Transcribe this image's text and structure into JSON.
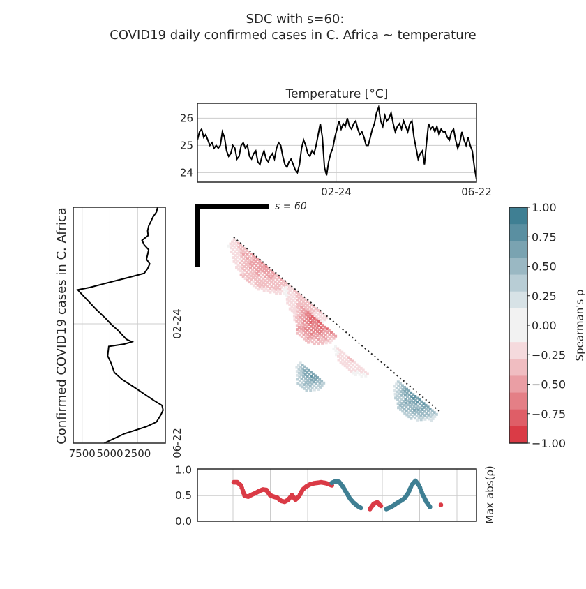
{
  "title": {
    "line1": "SDC with s=60:",
    "line2": "COVID19 daily confirmed cases in C. Africa ~ temperature"
  },
  "colors": {
    "positive": "#3f7f93",
    "negative": "#da3b46",
    "series_line": "#000000",
    "grid": "#cccccc"
  },
  "chart_data": [
    {
      "type": "line",
      "id": "temperature",
      "title": "Temperature [°C]",
      "yticks": [
        24,
        25,
        26
      ],
      "ylim": [
        23.65,
        26.55
      ],
      "xtick_labels": [
        "02-24",
        "06-22"
      ],
      "grid": true,
      "y": [
        25.2,
        25.5,
        25.6,
        25.3,
        25.4,
        25.2,
        25.0,
        25.1,
        24.9,
        25.0,
        24.9,
        25.0,
        25.5,
        25.3,
        24.8,
        24.6,
        24.7,
        25.0,
        24.9,
        24.5,
        24.6,
        25.0,
        25.1,
        24.9,
        25.0,
        24.6,
        24.5,
        24.7,
        24.8,
        24.4,
        24.3,
        24.6,
        24.8,
        24.5,
        24.4,
        24.6,
        24.7,
        24.5,
        24.9,
        25.1,
        25.0,
        24.6,
        24.3,
        24.2,
        24.4,
        24.5,
        24.3,
        24.1,
        24.0,
        24.3,
        24.9,
        25.2,
        25.0,
        24.7,
        24.6,
        24.8,
        24.7,
        25.0,
        25.4,
        25.8,
        25.3,
        24.2,
        23.9,
        24.4,
        24.7,
        24.9,
        25.3,
        25.6,
        25.9,
        25.6,
        25.8,
        25.7,
        26.0,
        25.7,
        25.6,
        25.8,
        25.9,
        25.6,
        25.4,
        25.5,
        25.3,
        25.0,
        25.0,
        25.3,
        25.6,
        25.8,
        26.2,
        26.4,
        25.9,
        25.7,
        26.1,
        25.9,
        26.0,
        26.2,
        25.8,
        25.5,
        25.7,
        25.8,
        25.6,
        25.9,
        25.7,
        25.5,
        25.8,
        25.9,
        25.3,
        24.9,
        24.5,
        24.7,
        24.8,
        24.3,
        25.1,
        25.8,
        25.6,
        25.7,
        25.5,
        25.7,
        25.4,
        25.6,
        25.5,
        25.5,
        25.3,
        25.2,
        25.5,
        25.6,
        25.2,
        24.9,
        25.1,
        25.5,
        25.2,
        25.0,
        25.3,
        25.0,
        24.8,
        24.2,
        23.75
      ]
    },
    {
      "type": "line",
      "id": "cases",
      "orientation": "vertical",
      "ylabel": "Confirmed COVID19 cases in C. Africa",
      "xticks": [
        7500,
        5000,
        2500
      ],
      "xlim_reversed": [
        8300,
        0
      ],
      "ytick_labels": [
        "02-24",
        "06-22"
      ],
      "grid": true,
      "points": [
        [
          700,
          0.0
        ],
        [
          800,
          0.02
        ],
        [
          1100,
          0.04
        ],
        [
          1300,
          0.06
        ],
        [
          1500,
          0.08
        ],
        [
          1600,
          0.1
        ],
        [
          1550,
          0.12
        ],
        [
          2100,
          0.14
        ],
        [
          1900,
          0.16
        ],
        [
          1500,
          0.18
        ],
        [
          1600,
          0.2
        ],
        [
          1700,
          0.22
        ],
        [
          1400,
          0.24
        ],
        [
          1600,
          0.26
        ],
        [
          1900,
          0.28
        ],
        [
          3500,
          0.3
        ],
        [
          5200,
          0.32
        ],
        [
          6800,
          0.34
        ],
        [
          7900,
          0.35
        ],
        [
          7500,
          0.37
        ],
        [
          6900,
          0.4
        ],
        [
          6300,
          0.43
        ],
        [
          5400,
          0.47
        ],
        [
          4800,
          0.5
        ],
        [
          4300,
          0.52
        ],
        [
          3500,
          0.56
        ],
        [
          3000,
          0.57
        ],
        [
          3700,
          0.58
        ],
        [
          5100,
          0.59
        ],
        [
          5200,
          0.63
        ],
        [
          4900,
          0.66
        ],
        [
          4600,
          0.7
        ],
        [
          3900,
          0.73
        ],
        [
          2900,
          0.76
        ],
        [
          1000,
          0.82
        ],
        [
          300,
          0.84
        ],
        [
          200,
          0.86
        ],
        [
          400,
          0.88
        ],
        [
          800,
          0.91
        ],
        [
          1700,
          0.93
        ],
        [
          3700,
          0.96
        ],
        [
          5500,
          1.0
        ]
      ]
    },
    {
      "type": "heatmap",
      "id": "sdc-matrix",
      "colorbar_label": "Spearman's ρ",
      "colorbar_ticks": [
        1.0,
        0.75,
        0.5,
        0.25,
        0.0,
        -0.25,
        -0.5,
        -0.75,
        -1.0
      ],
      "colorbar_tick_labels": [
        "1.00",
        "0.75",
        "0.50",
        "0.25",
        "0.00",
        "−0.25",
        "−0.50",
        "−0.75",
        "−1.00"
      ],
      "colorbar_levels": [
        "#3f7f93",
        "#5a8fa1",
        "#7aa3b1",
        "#9ab8c3",
        "#b8cdd5",
        "#d7e2e6",
        "#f2f2f2",
        "#f2f2f2",
        "#f5dadd",
        "#f0bdc1",
        "#ea9ea4",
        "#e47f86",
        "#df5e67",
        "#da3b46"
      ],
      "scale_label": "s = 60",
      "blobs": [
        {
          "t0": 0.0,
          "t1": 0.28,
          "offset": 0.0,
          "width": 0.09,
          "rho": -0.55
        },
        {
          "t0": 0.26,
          "t1": 0.45,
          "offset": 0.0,
          "width": 0.07,
          "rho": -0.4
        },
        {
          "t0": 0.34,
          "t1": 0.52,
          "offset": 0.03,
          "width": 0.09,
          "rho": -0.8
        },
        {
          "t0": 0.48,
          "t1": 0.6,
          "offset": 0.19,
          "width": 0.07,
          "rho": 0.7
        },
        {
          "t0": 0.54,
          "t1": 0.7,
          "offset": 0.06,
          "width": 0.04,
          "rho": -0.3
        },
        {
          "t0": 0.8,
          "t1": 0.99,
          "offset": 0.01,
          "width": 0.08,
          "rho": 0.75
        }
      ]
    },
    {
      "type": "scatter",
      "id": "max-abs-rho",
      "ylabel": "Max abs(ρ)",
      "yticks": [
        0.0,
        0.5,
        1.0
      ],
      "ylim": [
        0.0,
        1.02
      ],
      "grid": true,
      "segments": [
        {
          "sign": "negative",
          "t": [
            0.0,
            0.02,
            0.04,
            0.06,
            0.08,
            0.1,
            0.12,
            0.14,
            0.16,
            0.18,
            0.2,
            0.22,
            0.24,
            0.26,
            0.28,
            0.3,
            0.32,
            0.34,
            0.36,
            0.38,
            0.4,
            0.42,
            0.44,
            0.46,
            0.48,
            0.5,
            0.52,
            0.54
          ],
          "y": [
            0.76,
            0.76,
            0.7,
            0.5,
            0.48,
            0.52,
            0.55,
            0.59,
            0.62,
            0.61,
            0.51,
            0.48,
            0.46,
            0.4,
            0.38,
            0.42,
            0.51,
            0.42,
            0.49,
            0.62,
            0.68,
            0.72,
            0.74,
            0.75,
            0.76,
            0.75,
            0.73,
            0.7
          ]
        },
        {
          "sign": "positive",
          "t": [
            0.54,
            0.56,
            0.58,
            0.6,
            0.62,
            0.64,
            0.66,
            0.68,
            0.7
          ],
          "y": [
            0.75,
            0.78,
            0.77,
            0.68,
            0.56,
            0.44,
            0.36,
            0.3,
            0.26
          ]
        },
        {
          "sign": "negative",
          "t": [
            0.75,
            0.77,
            0.79,
            0.81
          ],
          "y": [
            0.24,
            0.34,
            0.37,
            0.3
          ]
        },
        {
          "sign": "positive",
          "t": [
            0.84,
            0.86,
            0.88,
            0.9,
            0.92,
            0.94,
            0.96,
            0.98,
            1.0,
            1.02,
            1.04,
            1.06,
            1.08
          ],
          "y": [
            0.24,
            0.27,
            0.31,
            0.36,
            0.4,
            0.45,
            0.55,
            0.71,
            0.79,
            0.7,
            0.52,
            0.38,
            0.28
          ]
        },
        {
          "sign": "negative",
          "t": [
            1.14
          ],
          "y": [
            0.32
          ]
        }
      ]
    }
  ]
}
